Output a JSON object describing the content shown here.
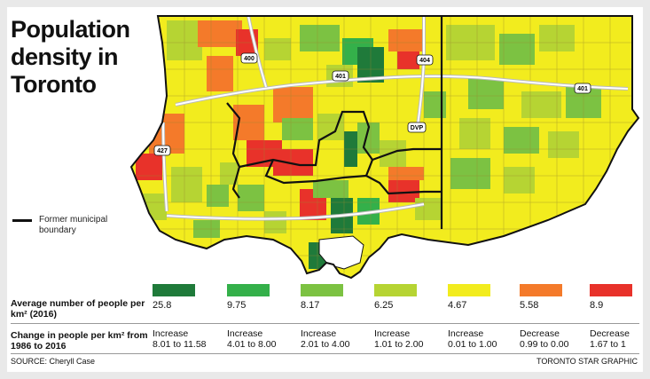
{
  "title_lines": [
    "Population",
    "density in",
    "Toronto"
  ],
  "boundary_legend": "Former municipal boundary",
  "avg_label": "Average number of people per km² (2016)",
  "change_label": "Change in people per km² from 1986 to 2016",
  "categories": [
    {
      "color": "#1f7a3a",
      "avg": "25.8",
      "change_dir": "Increase",
      "change_range": "8.01 to 11.58"
    },
    {
      "color": "#34b04a",
      "avg": "9.75",
      "change_dir": "Increase",
      "change_range": "4.01 to 8.00"
    },
    {
      "color": "#7cc242",
      "avg": "8.17",
      "change_dir": "Increase",
      "change_range": "2.01 to 4.00"
    },
    {
      "color": "#b6d433",
      "avg": "6.25",
      "change_dir": "Increase",
      "change_range": "1.01 to 2.00"
    },
    {
      "color": "#f2ec1e",
      "avg": "4.67",
      "change_dir": "Increase",
      "change_range": "0.01 to 1.00"
    },
    {
      "color": "#f47a2a",
      "avg": "5.58",
      "change_dir": "Decrease",
      "change_range": "0.99 to 0.00"
    },
    {
      "color": "#e8322a",
      "avg": "8.9",
      "change_dir": "Decrease",
      "change_range": "1.67 to 1"
    }
  ],
  "highways": [
    "400",
    "401",
    "404",
    "DVP",
    "427",
    "401"
  ],
  "source": "SOURCE: Cheryll Case",
  "credit": "TORONTO STAR GRAPHIC"
}
